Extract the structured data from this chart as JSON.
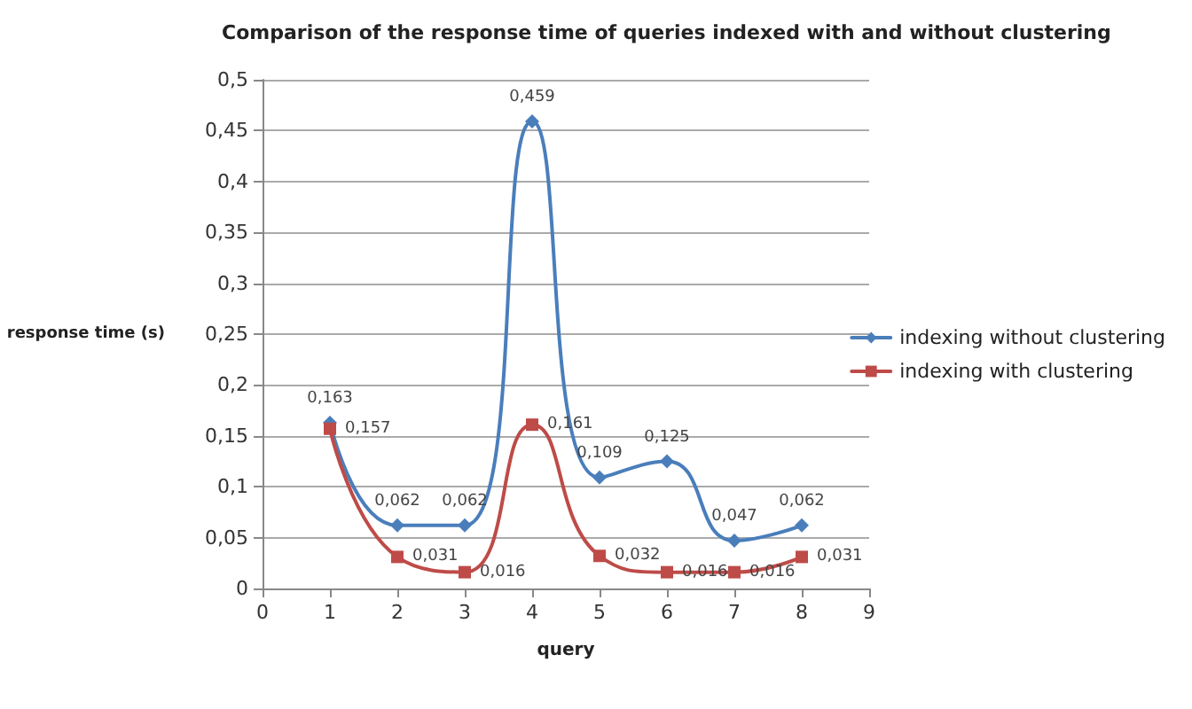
{
  "chart_data": {
    "type": "line",
    "title": "Comparison of the response time of queries indexed with and without clustering",
    "xlabel": "query",
    "ylabel": "response time (s)",
    "x": [
      1,
      2,
      3,
      4,
      5,
      6,
      7,
      8
    ],
    "series": [
      {
        "name": "indexing without clustering",
        "color": "#4a7ebb",
        "marker": "diamond",
        "values": [
          0.163,
          0.062,
          0.062,
          0.459,
          0.109,
          0.125,
          0.047,
          0.062
        ],
        "value_labels": [
          "0,163",
          "0,062",
          "0,062",
          "0,459",
          "0,109",
          "0,125",
          "0,047",
          "0,062"
        ]
      },
      {
        "name": "indexing with clustering",
        "color": "#be4b48",
        "marker": "square",
        "values": [
          0.157,
          0.031,
          0.016,
          0.161,
          0.032,
          0.016,
          0.016,
          0.031
        ],
        "value_labels": [
          "0,157",
          "0,031",
          "0,016",
          "0,161",
          "0,032",
          "0,016",
          "0,016",
          "0,031"
        ]
      }
    ],
    "xlim": [
      0,
      9
    ],
    "xticks": [
      0,
      1,
      2,
      3,
      4,
      5,
      6,
      7,
      8,
      9
    ],
    "ylim": [
      0,
      0.5
    ],
    "yticks": [
      {
        "value": 0,
        "label": "0"
      },
      {
        "value": 0.05,
        "label": "0,05"
      },
      {
        "value": 0.1,
        "label": "0,1"
      },
      {
        "value": 0.15,
        "label": "0,15"
      },
      {
        "value": 0.2,
        "label": "0,2"
      },
      {
        "value": 0.25,
        "label": "0,25"
      },
      {
        "value": 0.3,
        "label": "0,3"
      },
      {
        "value": 0.35,
        "label": "0,35"
      },
      {
        "value": 0.4,
        "label": "0,4"
      },
      {
        "value": 0.45,
        "label": "0,45"
      },
      {
        "value": 0.5,
        "label": "0,5"
      }
    ],
    "grid": "y",
    "legend": "right",
    "line_style": "solid"
  }
}
